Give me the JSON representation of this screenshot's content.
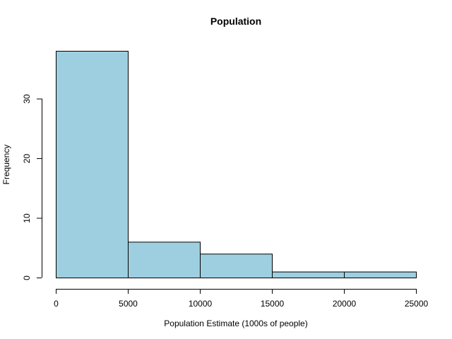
{
  "chart_data": {
    "type": "bar",
    "title": "Population",
    "xlabel": "Population Estimate (1000s of people)",
    "ylabel": "Frequency",
    "bins": [
      {
        "from": 0,
        "to": 5000,
        "count": 38
      },
      {
        "from": 5000,
        "to": 10000,
        "count": 6
      },
      {
        "from": 10000,
        "to": 15000,
        "count": 4
      },
      {
        "from": 15000,
        "to": 20000,
        "count": 1
      },
      {
        "from": 20000,
        "to": 25000,
        "count": 1
      }
    ],
    "xlim": [
      0,
      25000
    ],
    "ylim": [
      0,
      38
    ],
    "xticks": [
      0,
      5000,
      10000,
      15000,
      20000,
      25000
    ],
    "yticks": [
      0,
      10,
      20,
      30
    ],
    "bar_color": "#9ecfe0",
    "grid": false
  }
}
